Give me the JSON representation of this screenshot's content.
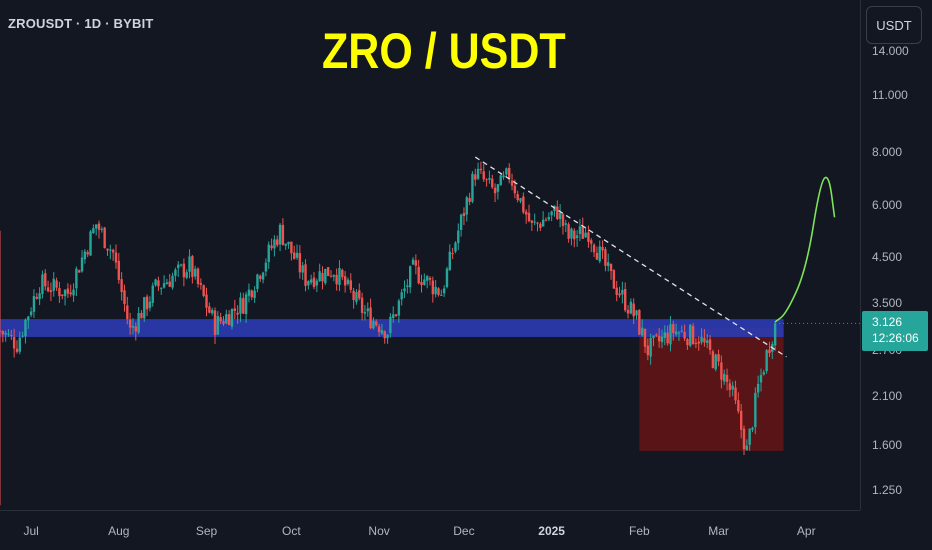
{
  "header": {
    "symbol_line": "ZROUSDT · 1D · BYBIT",
    "title": "ZRO / USDT"
  },
  "price_axis": {
    "currency": "USDT",
    "ticks": [
      "14.000",
      "11.000",
      "8.000",
      "6.000",
      "4.500",
      "3.500",
      "2.700",
      "2.100",
      "1.600",
      "1.250"
    ]
  },
  "time_axis": {
    "ticks": [
      {
        "label": "Jul",
        "bold": false
      },
      {
        "label": "Aug",
        "bold": false
      },
      {
        "label": "Sep",
        "bold": false
      },
      {
        "label": "Oct",
        "bold": false
      },
      {
        "label": "Nov",
        "bold": false
      },
      {
        "label": "Dec",
        "bold": false
      },
      {
        "label": "2025",
        "bold": true
      },
      {
        "label": "Feb",
        "bold": false
      },
      {
        "label": "Mar",
        "bold": false
      },
      {
        "label": "Apr",
        "bold": false
      }
    ]
  },
  "last_price": {
    "price": "3.126",
    "countdown": "12:26:06"
  },
  "colors": {
    "background": "#131722",
    "up": "#26a69a",
    "down": "#ef5350",
    "support_zone": "#2a3bb0",
    "demand_box": "#5c1416",
    "projection": "#7ee35a",
    "trendline": "#e0e3eb",
    "title": "#ffff00"
  },
  "chart_data": {
    "type": "candlestick",
    "symbol": "ZROUSDT",
    "interval": "1D",
    "exchange": "BYBIT",
    "title": "ZRO / USDT",
    "y_scale": "log",
    "ylim": [
      1.12,
      18.5
    ],
    "x_start": "2024-06-20",
    "x_end": "2025-04-20",
    "anchors": [
      {
        "date": "2024-06-20",
        "price": 3.0,
        "spike_low": 1.15,
        "spike_high": 5.2
      },
      {
        "date": "2024-06-26",
        "price": 2.8
      },
      {
        "date": "2024-07-04",
        "price": 3.9
      },
      {
        "date": "2024-07-14",
        "price": 3.7
      },
      {
        "date": "2024-07-24",
        "price": 5.4
      },
      {
        "date": "2024-07-30",
        "price": 4.6
      },
      {
        "date": "2024-08-05",
        "price": 3.0
      },
      {
        "date": "2024-08-14",
        "price": 3.8
      },
      {
        "date": "2024-08-26",
        "price": 4.3
      },
      {
        "date": "2024-09-04",
        "price": 3.1
      },
      {
        "date": "2024-09-14",
        "price": 3.5
      },
      {
        "date": "2024-09-27",
        "price": 5.2
      },
      {
        "date": "2024-10-06",
        "price": 4.0
      },
      {
        "date": "2024-10-16",
        "price": 4.2
      },
      {
        "date": "2024-10-27",
        "price": 3.3
      },
      {
        "date": "2024-11-04",
        "price": 3.0
      },
      {
        "date": "2024-11-13",
        "price": 4.2
      },
      {
        "date": "2024-11-23",
        "price": 3.7
      },
      {
        "date": "2024-11-29",
        "price": 5.2
      },
      {
        "date": "2024-12-05",
        "price": 7.2
      },
      {
        "date": "2024-12-12",
        "price": 6.4
      },
      {
        "date": "2024-12-17",
        "price": 7.1
      },
      {
        "date": "2024-12-25",
        "price": 5.3
      },
      {
        "date": "2025-01-03",
        "price": 5.8
      },
      {
        "date": "2025-01-07",
        "price": 5.0
      },
      {
        "date": "2025-01-14",
        "price": 5.2
      },
      {
        "date": "2025-01-22",
        "price": 4.0
      },
      {
        "date": "2025-01-31",
        "price": 3.2
      },
      {
        "date": "2025-02-04",
        "price": 2.7
      },
      {
        "date": "2025-02-13",
        "price": 3.0
      },
      {
        "date": "2025-02-22",
        "price": 2.9
      },
      {
        "date": "2025-03-02",
        "price": 2.4
      },
      {
        "date": "2025-03-06",
        "price": 2.1
      },
      {
        "date": "2025-03-11",
        "price": 1.55
      },
      {
        "date": "2025-03-15",
        "price": 2.2
      },
      {
        "date": "2025-03-19",
        "price": 2.8
      },
      {
        "date": "2025-03-21",
        "price": 3.126
      }
    ],
    "support_zone": {
      "top": 3.2,
      "bottom": 2.9,
      "from": "2024-06-20",
      "to": "2025-03-24"
    },
    "demand_box": {
      "top": 3.05,
      "bottom": 1.55,
      "from": "2025-02-01",
      "to": "2025-03-24"
    },
    "trendline": {
      "from": {
        "date": "2024-12-05",
        "price": 7.8
      },
      "to": {
        "date": "2025-03-25",
        "price": 2.6
      }
    },
    "projection": [
      {
        "date": "2025-03-21",
        "price": 3.15
      },
      {
        "date": "2025-03-25",
        "price": 3.3
      },
      {
        "date": "2025-04-01",
        "price": 4.2
      },
      {
        "date": "2025-04-06",
        "price": 6.8
      },
      {
        "date": "2025-04-09",
        "price": 7.1
      },
      {
        "date": "2025-04-11",
        "price": 5.6
      }
    ]
  }
}
